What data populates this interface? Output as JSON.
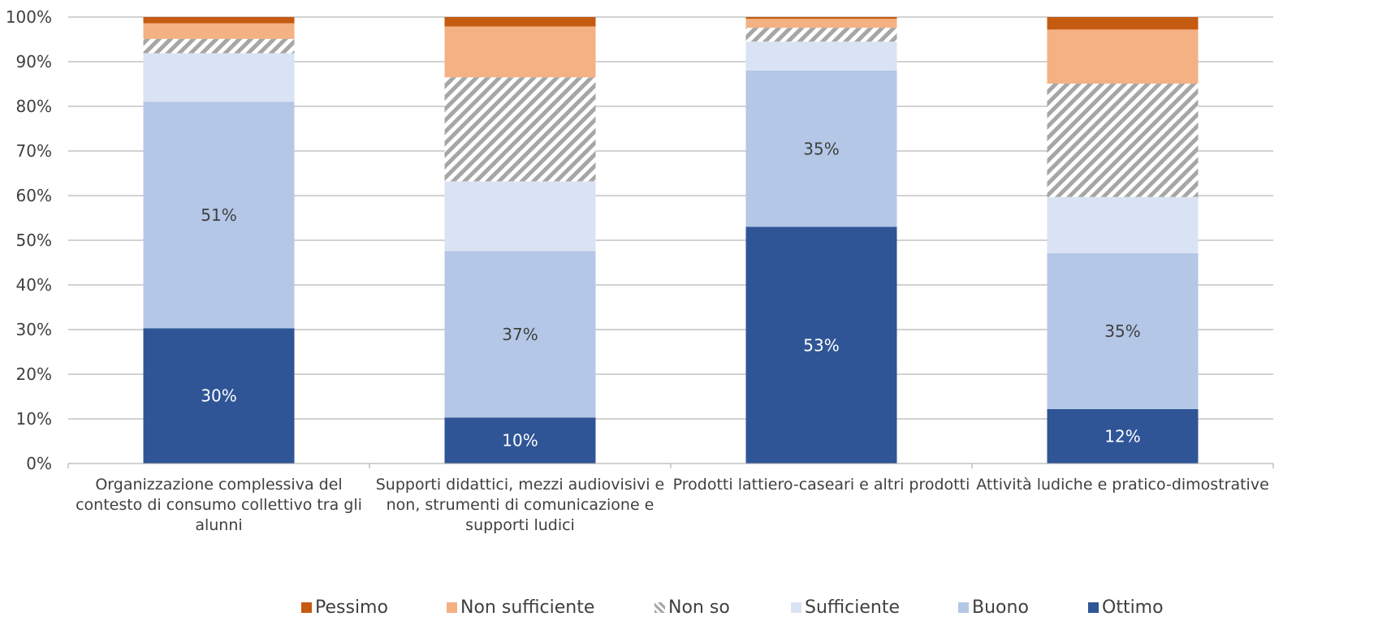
{
  "chart_data": {
    "type": "bar",
    "stacked": true,
    "percent": true,
    "categories": [
      [
        "Organizzazione complessiva del",
        "contesto di consumo collettivo tra gli",
        "alunni"
      ],
      [
        "Supporti didattici, mezzi audiovisivi e",
        "non, strumenti di comunicazione e",
        "supporti ludici"
      ],
      [
        "Prodotti lattiero-caseari e altri prodotti"
      ],
      [
        "Attività ludiche e pratico-dimostrative"
      ]
    ],
    "ylim": [
      0,
      100
    ],
    "yticks": [
      "0%",
      "10%",
      "20%",
      "30%",
      "40%",
      "50%",
      "60%",
      "70%",
      "80%",
      "90%",
      "100%"
    ],
    "grid": true,
    "legend_position": "bottom",
    "series": [
      {
        "name": "Ottimo",
        "color": "#2f5597",
        "values": [
          30.3,
          10.3,
          53.0,
          12.2
        ],
        "labels": [
          "30%",
          "10%",
          "53%",
          "12%"
        ]
      },
      {
        "name": "Buono",
        "color": "#b4c7e7",
        "values": [
          50.7,
          37.3,
          35.0,
          34.9
        ],
        "labels": [
          "51%",
          "37%",
          "35%",
          "35%"
        ]
      },
      {
        "name": "Sufficiente",
        "color": "#dae3f3",
        "values": [
          10.9,
          15.6,
          6.5,
          12.6
        ],
        "labels": [
          "",
          "",
          "",
          ""
        ]
      },
      {
        "name": "Non so",
        "color": "hatch",
        "values": [
          3.2,
          23.3,
          3.1,
          25.4
        ],
        "labels": [
          "",
          "",
          "",
          ""
        ]
      },
      {
        "name": "Non sufficiente",
        "color": "#f4b183",
        "values": [
          3.5,
          11.4,
          2.0,
          12.1
        ],
        "labels": [
          "",
          "",
          "",
          ""
        ]
      },
      {
        "name": "Pessimo",
        "color": "#c55a11",
        "values": [
          1.4,
          2.1,
          0.4,
          2.8
        ],
        "labels": [
          "",
          "",
          "",
          ""
        ]
      }
    ],
    "legend_order": [
      "Pessimo",
      "Non sufficiente",
      "Non so",
      "Sufficiente",
      "Buono",
      "Ottimo"
    ]
  }
}
